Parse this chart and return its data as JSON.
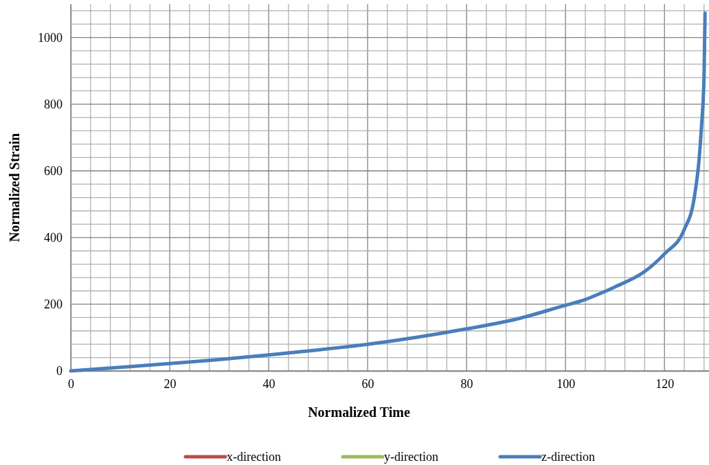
{
  "chart_data": {
    "type": "line",
    "xlabel": "Normalized Time",
    "ylabel": "Normalized Strain",
    "x": [
      0,
      10,
      20,
      30,
      40,
      50,
      60,
      70,
      80,
      90,
      100,
      104,
      106,
      110,
      116,
      120,
      124,
      126,
      127,
      127.5,
      128,
      128.2
    ],
    "series": [
      {
        "name": "x-direction",
        "color": "#be4b48",
        "values": [
          null,
          null,
          null,
          null,
          null,
          null,
          null,
          null,
          null,
          null,
          null,
          null,
          null,
          null,
          null,
          null,
          null,
          null,
          null,
          null,
          null,
          null
        ]
      },
      {
        "name": "y-direction",
        "color": "#9bbb59",
        "values": [
          null,
          null,
          null,
          null,
          null,
          null,
          null,
          null,
          null,
          null,
          null,
          null,
          null,
          null,
          null,
          null,
          null,
          null,
          null,
          null,
          null,
          null
        ]
      },
      {
        "name": "z-direction",
        "color": "#4a7ebb",
        "values": [
          0,
          11,
          22,
          34,
          48,
          63,
          80,
          101,
          126,
          155,
          197,
          214,
          226,
          252,
          298,
          351,
          424,
          518,
          635,
          737,
          884,
          1073
        ]
      }
    ],
    "xlim": [
      0,
      129
    ],
    "xticks": [
      0,
      {
        "value": 4,
        "label": null
      },
      {
        "value": 8,
        "label": null
      },
      {
        "value": 12,
        "label": null
      },
      {
        "value": 16,
        "label": null
      },
      20,
      {
        "value": 24,
        "label": null
      },
      {
        "value": 28,
        "label": null
      },
      {
        "value": 32,
        "label": null
      },
      {
        "value": 36,
        "label": null
      },
      40,
      {
        "value": 44,
        "label": null
      },
      {
        "value": 48,
        "label": null
      },
      {
        "value": 52,
        "label": null
      },
      {
        "value": 56,
        "label": null
      },
      60,
      {
        "value": 64,
        "label": null
      },
      {
        "value": 68,
        "label": null
      },
      {
        "value": 72,
        "label": null
      },
      {
        "value": 76,
        "label": null
      },
      80,
      {
        "value": 84,
        "label": null
      },
      {
        "value": 88,
        "label": null
      },
      {
        "value": 92,
        "label": null
      },
      {
        "value": 96,
        "label": null
      },
      100,
      {
        "value": 104,
        "label": null
      },
      {
        "value": 108,
        "label": null
      },
      {
        "value": 112,
        "label": null
      },
      {
        "value": 116,
        "label": null
      },
      120,
      {
        "value": 124,
        "label": null
      },
      {
        "value": 128,
        "label": null
      }
    ],
    "ylim": [
      0,
      1100
    ],
    "yticks": [
      0,
      {
        "value": 40,
        "label": null
      },
      {
        "value": 80,
        "label": null
      },
      {
        "value": 120,
        "label": null
      },
      {
        "value": 160,
        "label": null
      },
      200,
      {
        "value": 240,
        "label": null
      },
      {
        "value": 280,
        "label": null
      },
      {
        "value": 320,
        "label": null
      },
      {
        "value": 360,
        "label": null
      },
      400,
      {
        "value": 440,
        "label": null
      },
      {
        "value": 480,
        "label": null
      },
      {
        "value": 520,
        "label": null
      },
      {
        "value": 560,
        "label": null
      },
      600,
      {
        "value": 640,
        "label": null
      },
      {
        "value": 680,
        "label": null
      },
      {
        "value": 720,
        "label": null
      },
      {
        "value": 760,
        "label": null
      },
      800,
      {
        "value": 840,
        "label": null
      },
      {
        "value": 880,
        "label": null
      },
      {
        "value": 920,
        "label": null
      },
      {
        "value": 960,
        "label": null
      },
      1000,
      {
        "value": 1040,
        "label": null
      },
      {
        "value": 1080,
        "label": null
      }
    ],
    "grid": true,
    "legend": "bottom",
    "marker": "none",
    "line_style": "solid"
  }
}
